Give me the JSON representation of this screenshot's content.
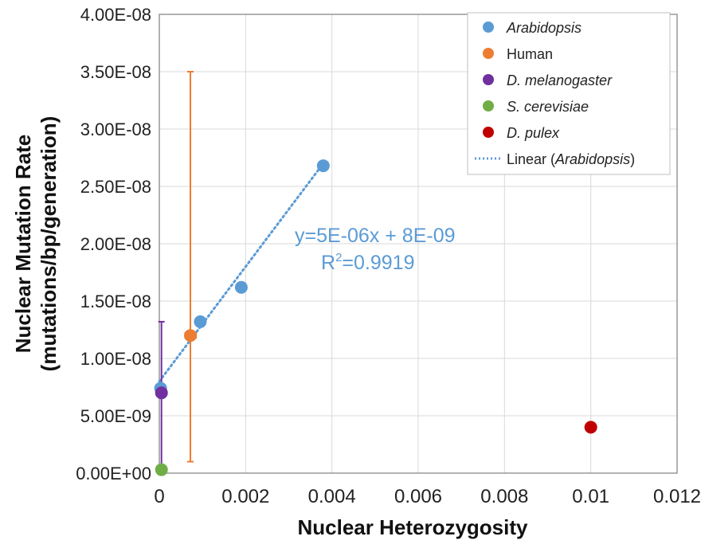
{
  "chart_data": {
    "type": "scatter",
    "title": "",
    "xlabel": "Nuclear Heterozygosity",
    "ylabel_line1": "Nuclear Mutation Rate",
    "ylabel_line2": "(mutations/bp/generation)",
    "xlim": [
      0,
      0.012
    ],
    "ylim": [
      0,
      4e-08
    ],
    "x_ticks": [
      0,
      0.002,
      0.004,
      0.006,
      0.008,
      0.01,
      0.012
    ],
    "x_tick_labels": [
      "0",
      "0.002",
      "0.004",
      "0.006",
      "0.008",
      "0.01",
      "0.012"
    ],
    "y_ticks": [
      0,
      5e-09,
      1e-08,
      1.5e-08,
      2e-08,
      2.5e-08,
      3e-08,
      3.5e-08,
      4e-08
    ],
    "y_tick_labels": [
      "0.00E+00",
      "5.00E-09",
      "1.00E-08",
      "1.50E-08",
      "2.00E-08",
      "2.50E-08",
      "3.00E-08",
      "3.50E-08",
      "4.00E-08"
    ],
    "grid": true,
    "legend_position": "top-right",
    "series": [
      {
        "name": "Arabidopsis",
        "italic": true,
        "color": "#5b9bd5",
        "points": [
          {
            "x": 3e-05,
            "y": 7.4e-09
          },
          {
            "x": 0.00095,
            "y": 1.32e-08
          },
          {
            "x": 0.0019,
            "y": 1.62e-08
          },
          {
            "x": 0.0038,
            "y": 2.68e-08
          }
        ]
      },
      {
        "name": "Human",
        "italic": false,
        "color": "#ed7d31",
        "points": [
          {
            "x": 0.00072,
            "y": 1.2e-08,
            "y_err_low": 1e-09,
            "y_err_high": 3.5e-08,
            "x_err_low": 0.0006,
            "x_err_high": 0.00085
          }
        ]
      },
      {
        "name": "D. melanogaster",
        "italic": true,
        "color": "#7030a0",
        "points": [
          {
            "x": 5e-05,
            "y": 7e-09,
            "y_err_low": 0.0,
            "y_err_high": 1.32e-08
          }
        ]
      },
      {
        "name": "S. cerevisiae",
        "italic": true,
        "color": "#70ad47",
        "points": [
          {
            "x": 5e-05,
            "y": 3e-10
          }
        ]
      },
      {
        "name": "D. pulex",
        "italic": true,
        "color": "#c00000",
        "points": [
          {
            "x": 0.01,
            "y": 4e-09
          }
        ]
      }
    ],
    "trendline": {
      "legend_prefix": "Linear (",
      "legend_species": "Arabidopsis",
      "legend_suffix": ")",
      "color": "#5b9bd5",
      "x_range": [
        0.0,
        0.0038
      ],
      "slope": 5e-06,
      "intercept": 8e-09,
      "equation": "y=5E-06x + 8E-09",
      "r2_prefix": "R",
      "r2_exp": "2",
      "r2_value": "=0.9919"
    }
  }
}
